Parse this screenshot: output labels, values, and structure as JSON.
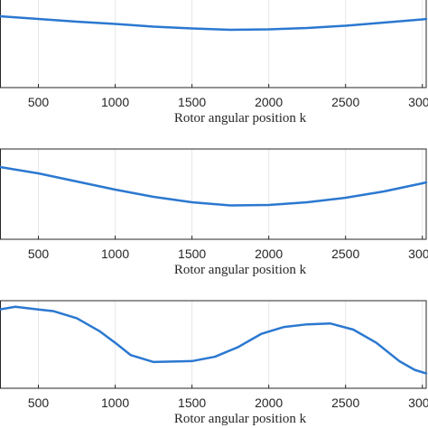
{
  "chart_data": [
    {
      "type": "line",
      "x_label": "Rotor angular position k",
      "xlim": [
        250,
        3025
      ],
      "xticks": [
        500,
        1000,
        1500,
        2000,
        2500,
        3000
      ],
      "ylim": [
        0,
        100
      ],
      "grid": true,
      "series": [
        {
          "color": "#2b78d0",
          "x": [
            250,
            500,
            750,
            1000,
            1250,
            1500,
            1750,
            2000,
            2250,
            2500,
            2750,
            3000,
            3025
          ],
          "values": [
            79,
            76,
            73,
            70.5,
            67.5,
            65.5,
            64,
            64.5,
            66,
            68.5,
            72,
            75.5,
            76
          ]
        }
      ]
    },
    {
      "type": "line",
      "x_label": "Rotor angular position k",
      "xlim": [
        250,
        3025
      ],
      "xticks": [
        500,
        1000,
        1500,
        2000,
        2500,
        3000
      ],
      "ylim": [
        0,
        100
      ],
      "grid": true,
      "series": [
        {
          "color": "#2b78d0",
          "x": [
            250,
            500,
            750,
            1000,
            1250,
            1500,
            1750,
            2000,
            2250,
            2500,
            2750,
            3000,
            3025
          ],
          "values": [
            80,
            73,
            64,
            55,
            47,
            41,
            37.5,
            38,
            41,
            46,
            53,
            62,
            63
          ]
        }
      ]
    },
    {
      "type": "line",
      "x_label": "Rotor angular position k",
      "xlim": [
        250,
        3025
      ],
      "xticks": [
        500,
        1000,
        1500,
        2000,
        2500,
        3000
      ],
      "ylim": [
        0,
        100
      ],
      "grid": true,
      "series": [
        {
          "color": "#2b78d0",
          "x": [
            250,
            350,
            500,
            600,
            750,
            900,
            1000,
            1100,
            1250,
            1500,
            1650,
            1800,
            1950,
            2100,
            2250,
            2400,
            2550,
            2700,
            2850,
            2950,
            3025
          ],
          "values": [
            90,
            93,
            90,
            88,
            80,
            65,
            52,
            38,
            30,
            31,
            36,
            47,
            62,
            70,
            73,
            74,
            67,
            52,
            31,
            21,
            17
          ]
        }
      ]
    }
  ]
}
